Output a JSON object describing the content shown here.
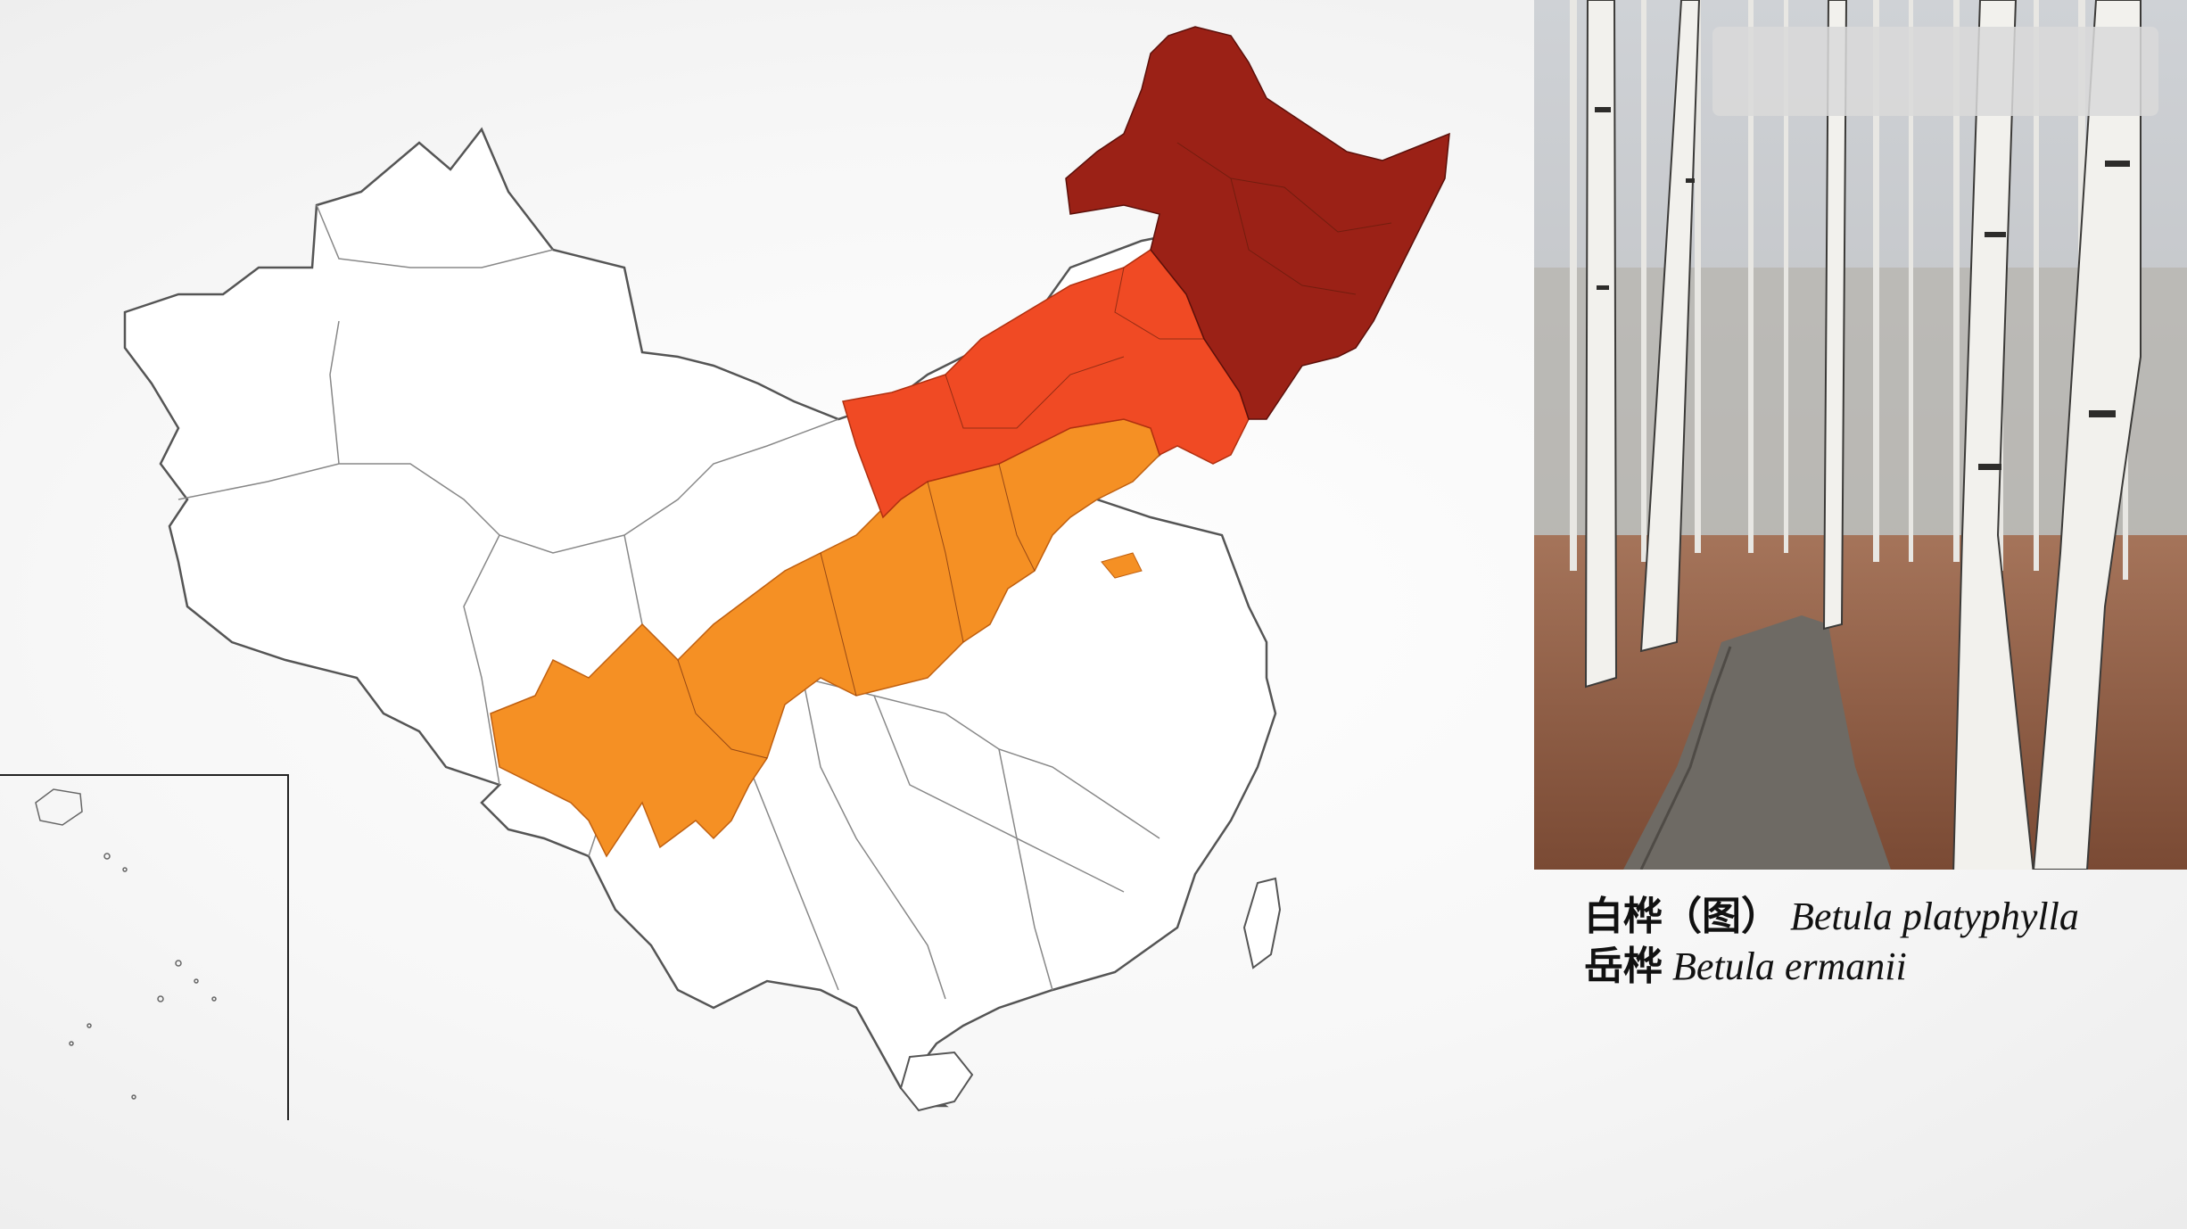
{
  "map": {
    "colors": {
      "northeast": "#9b2116",
      "north": "#f04a24",
      "central": "#f59024",
      "unshaded": "#ffffff",
      "border": "#555555"
    }
  },
  "photo": {
    "subject": "birch-forest-boardwalk"
  },
  "caption": {
    "line1_cn": "白桦（图）",
    "line1_latin": "Betula platyphylla",
    "line2_cn": "岳桦",
    "line2_latin": "Betula ermanii"
  }
}
